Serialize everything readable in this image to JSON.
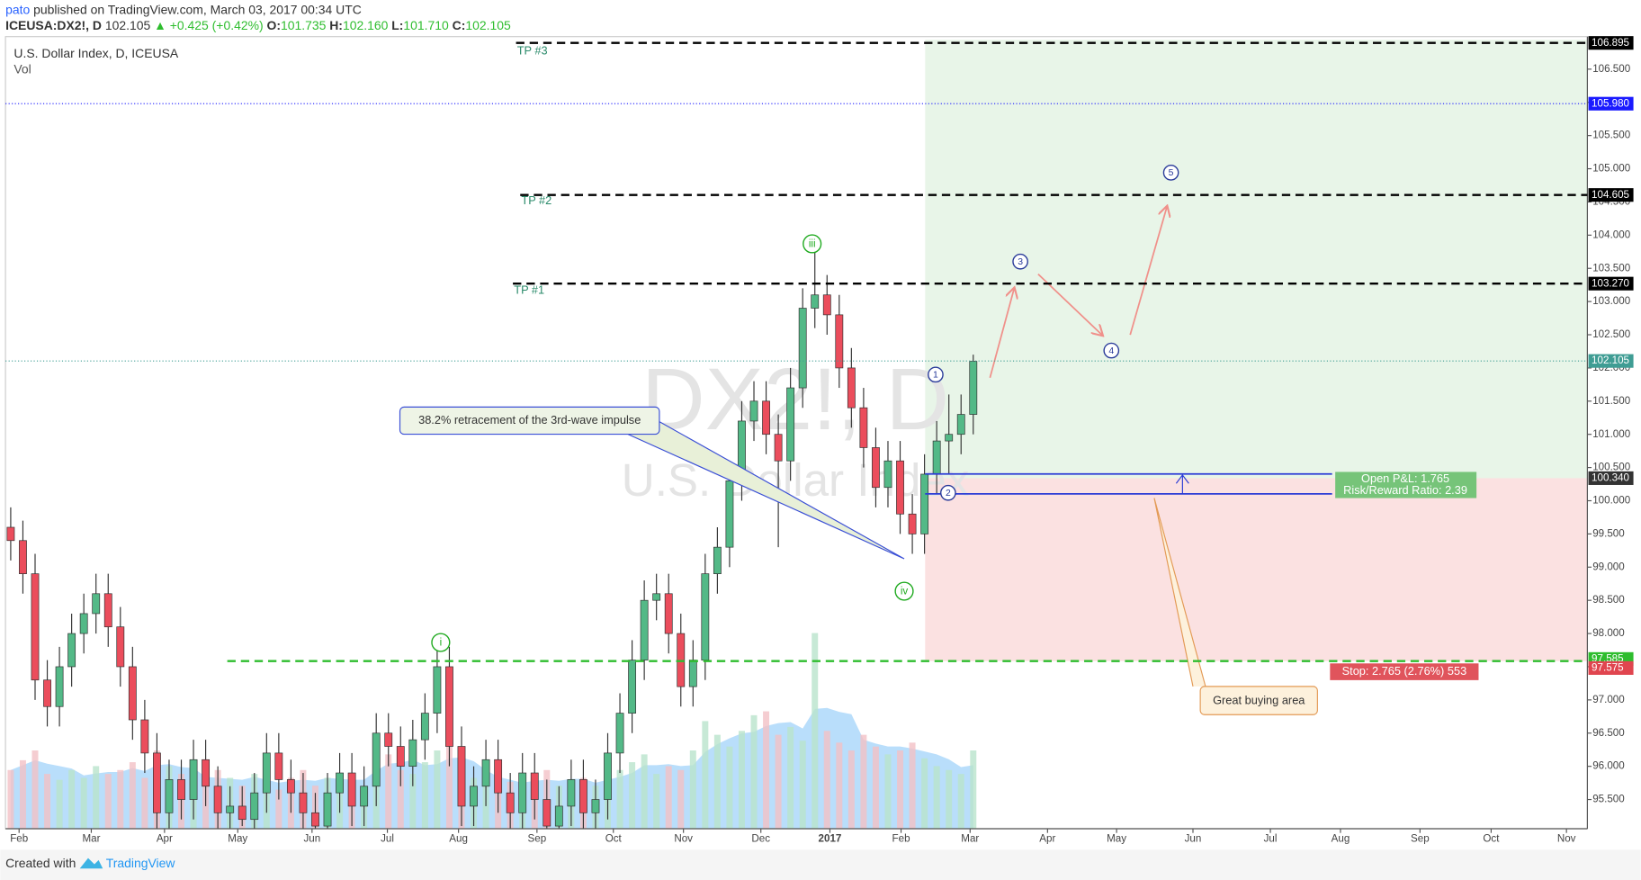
{
  "header": {
    "author": "pato",
    "published": "published on TradingView.com, March 03, 2017 00:34 UTC"
  },
  "symbol_bar": {
    "symbol": "ICEUSA:DX2!, D",
    "last": "102.105",
    "change": "▲ +0.425 (+0.42%)",
    "o_label": "O:",
    "o": "101.735",
    "h_label": "H:",
    "h": "102.160",
    "l_label": "L:",
    "l": "101.710",
    "c_label": "C:",
    "c": "102.105"
  },
  "chart_data": {
    "type": "candlestick",
    "title": "U.S. Dollar Index, D, ICEUSA",
    "volume_label": "Vol",
    "watermark": [
      "DX2!, D",
      "U.S. Dollar Index"
    ],
    "x_axis_labels": [
      "Feb",
      "Mar",
      "Apr",
      "May",
      "Jun",
      "Jul",
      "Aug",
      "Sep",
      "Oct",
      "Nov",
      "Dec",
      "2017",
      "Feb",
      "Mar",
      "Apr",
      "May",
      "Jun",
      "Jul",
      "Aug",
      "Sep",
      "Oct",
      "Nov"
    ],
    "open": [
      99.6,
      99.4,
      98.9,
      97.3,
      96.9,
      97.5,
      98.0,
      98.3,
      98.6,
      98.1,
      97.5,
      96.7,
      96.2,
      95.3,
      95.8,
      95.5,
      96.1,
      95.7,
      95.3,
      95.4,
      95.2,
      95.6,
      96.2,
      95.8,
      95.6,
      95.3,
      95.1,
      95.6,
      95.9,
      95.4,
      95.7,
      96.5,
      96.3,
      96.0,
      96.4,
      96.8,
      97.5,
      96.3,
      95.4,
      95.7,
      96.1,
      95.6,
      95.3,
      95.9,
      95.5,
      95.1,
      95.4,
      95.8,
      95.3,
      95.5,
      96.2,
      96.8,
      97.6,
      98.5,
      98.6,
      98.0,
      97.2,
      97.6,
      98.9,
      99.3,
      100.3,
      101.2,
      101.5,
      101.0,
      100.6,
      101.7,
      102.9,
      103.1,
      102.8,
      102.0,
      101.4,
      100.8,
      100.2,
      100.6,
      99.8,
      99.5,
      100.4,
      100.9,
      101.0,
      101.3
    ],
    "high": [
      99.9,
      99.7,
      99.2,
      97.6,
      97.8,
      98.3,
      98.6,
      98.9,
      98.9,
      98.4,
      97.8,
      97.0,
      96.5,
      96.1,
      96.1,
      96.4,
      96.4,
      96.0,
      95.7,
      95.7,
      95.9,
      96.5,
      96.5,
      96.1,
      95.9,
      95.6,
      95.9,
      96.2,
      96.2,
      96.0,
      96.8,
      96.8,
      96.6,
      96.7,
      97.1,
      97.8,
      97.8,
      96.6,
      96.0,
      96.4,
      96.4,
      95.9,
      96.2,
      96.2,
      95.8,
      95.7,
      96.1,
      96.1,
      95.8,
      96.5,
      97.1,
      97.9,
      98.8,
      98.9,
      98.9,
      98.3,
      97.9,
      99.2,
      99.6,
      100.6,
      101.5,
      101.8,
      101.8,
      101.3,
      102.0,
      103.2,
      103.8,
      103.4,
      103.1,
      102.3,
      101.7,
      101.1,
      100.9,
      100.9,
      100.1,
      100.7,
      101.2,
      101.6,
      101.6,
      102.2
    ],
    "low": [
      99.1,
      98.6,
      97.0,
      96.6,
      96.6,
      97.2,
      97.7,
      98.0,
      97.8,
      97.2,
      96.4,
      95.9,
      95.0,
      95.0,
      95.2,
      95.2,
      95.4,
      95.0,
      95.0,
      95.1,
      95.0,
      95.3,
      95.5,
      95.3,
      95.0,
      95.0,
      95.0,
      95.3,
      95.1,
      95.1,
      95.4,
      96.0,
      95.7,
      95.7,
      96.1,
      96.5,
      96.0,
      95.1,
      95.1,
      95.4,
      95.3,
      95.0,
      95.0,
      95.2,
      95.0,
      95.0,
      95.1,
      95.0,
      95.0,
      95.2,
      95.9,
      96.5,
      97.3,
      98.2,
      97.7,
      96.9,
      96.9,
      97.3,
      98.6,
      99.0,
      100.0,
      100.9,
      100.7,
      99.3,
      100.3,
      101.4,
      102.6,
      102.5,
      101.7,
      101.1,
      100.5,
      99.9,
      99.9,
      99.5,
      99.2,
      99.2,
      100.1,
      100.4,
      100.7,
      101.0
    ],
    "close": [
      99.4,
      98.9,
      97.3,
      96.9,
      97.5,
      98.0,
      98.3,
      98.6,
      98.1,
      97.5,
      96.7,
      96.2,
      95.3,
      95.8,
      95.5,
      96.1,
      95.7,
      95.3,
      95.4,
      95.2,
      95.6,
      96.2,
      95.8,
      95.6,
      95.3,
      95.1,
      95.6,
      95.9,
      95.4,
      95.7,
      96.5,
      96.3,
      96.0,
      96.4,
      96.8,
      97.5,
      96.3,
      95.4,
      95.7,
      96.1,
      95.6,
      95.3,
      95.9,
      95.5,
      95.1,
      95.4,
      95.8,
      95.3,
      95.5,
      96.2,
      96.8,
      97.6,
      98.5,
      98.6,
      98.0,
      97.2,
      97.6,
      98.9,
      99.3,
      100.3,
      101.2,
      101.5,
      101.0,
      100.6,
      101.7,
      102.9,
      103.1,
      102.8,
      102.0,
      101.4,
      100.8,
      100.2,
      100.6,
      99.8,
      99.5,
      100.4,
      100.9,
      101.0,
      101.3,
      102.1
    ],
    "volume": [
      30,
      35,
      40,
      28,
      25,
      30,
      26,
      32,
      28,
      30,
      34,
      26,
      40,
      32,
      28,
      24,
      22,
      30,
      26,
      22,
      28,
      24,
      20,
      26,
      30,
      22,
      26,
      24,
      28,
      22,
      45,
      38,
      30,
      28,
      34,
      40,
      42,
      30,
      26,
      22,
      28,
      24,
      20,
      26,
      30,
      22,
      24,
      26,
      22,
      28,
      30,
      34,
      38,
      28,
      32,
      30,
      40,
      55,
      48,
      42,
      50,
      58,
      60,
      48,
      52,
      45,
      100,
      50,
      44,
      40,
      48,
      42,
      38,
      40,
      44,
      36,
      32,
      30,
      28,
      40
    ],
    "up_color": "#53b987",
    "down_color": "#eb4d5c",
    "volume_up": "#b9e3cc",
    "volume_down": "#f3c0c5",
    "ylim": [
      95.06,
      106.99
    ],
    "yticks": [
      {
        "value": 95.5,
        "label": "95.500"
      },
      {
        "value": 96,
        "label": "96.000"
      },
      {
        "value": 96.5,
        "label": "96.500"
      },
      {
        "value": 97,
        "label": "97.000"
      },
      {
        "value": 97.5,
        "label": "97.500"
      },
      {
        "value": 98,
        "label": "98.000"
      },
      {
        "value": 98.5,
        "label": "98.500"
      },
      {
        "value": 99,
        "label": "99.000"
      },
      {
        "value": 99.5,
        "label": "99.500"
      },
      {
        "value": 100,
        "label": "100.000"
      },
      {
        "value": 100.5,
        "label": "100.500"
      },
      {
        "value": 101,
        "label": "101.000"
      },
      {
        "value": 101.5,
        "label": "101.500"
      },
      {
        "value": 102,
        "label": "102.000"
      },
      {
        "value": 102.5,
        "label": "102.500"
      },
      {
        "value": 103,
        "label": "103.000"
      },
      {
        "value": 103.5,
        "label": "103.500"
      },
      {
        "value": 104,
        "label": "104.000"
      },
      {
        "value": 104.5,
        "label": "104.500"
      },
      {
        "value": 105,
        "label": "105.000"
      },
      {
        "value": 105.5,
        "label": "105.500"
      },
      {
        "value": 106,
        "label": "106.000"
      },
      {
        "value": 106.5,
        "label": "106.500"
      }
    ],
    "grid": false,
    "price_lines": [
      {
        "value": 106.895,
        "label": "106.895",
        "name": "TP #3",
        "color": "#000000",
        "style": "dashed"
      },
      {
        "value": 105.98,
        "label": "105.980",
        "color": "#1a1aff",
        "style": "dotted"
      },
      {
        "value": 104.605,
        "label": "104.605",
        "name": "TP #2",
        "color": "#000000",
        "style": "dashed"
      },
      {
        "value": 103.27,
        "label": "103.270",
        "name": "TP #1",
        "color": "#000000",
        "style": "dashed"
      },
      {
        "value": 102.105,
        "label": "102.105",
        "color": "#3f9d94",
        "style": "dotted"
      },
      {
        "value": 100.34,
        "label": "100.340",
        "color": "#333333",
        "style": "none"
      },
      {
        "value": 97.585,
        "label": "97.585",
        "color": "#2ebd2e",
        "style": "dashed"
      },
      {
        "value": 97.575,
        "label": "97.575",
        "color": "#e0454f",
        "style": "none"
      }
    ],
    "position": {
      "target": 106.895,
      "entry": 100.34,
      "stop": 97.585,
      "pnl": "Open P&L: 1.765",
      "rr": "Risk/Reward Ratio: 2.39",
      "stop_label": "Stop: 2.765 (2.76%) 553"
    },
    "annotations": [
      "38.2% retracement of the 3rd-wave impulse",
      "Great buying area"
    ],
    "wave_labels": [
      "i",
      "iii",
      "iv",
      "1",
      "2",
      "3",
      "4",
      "5"
    ]
  },
  "footer": {
    "created": "Created with",
    "brand": "TradingView"
  }
}
